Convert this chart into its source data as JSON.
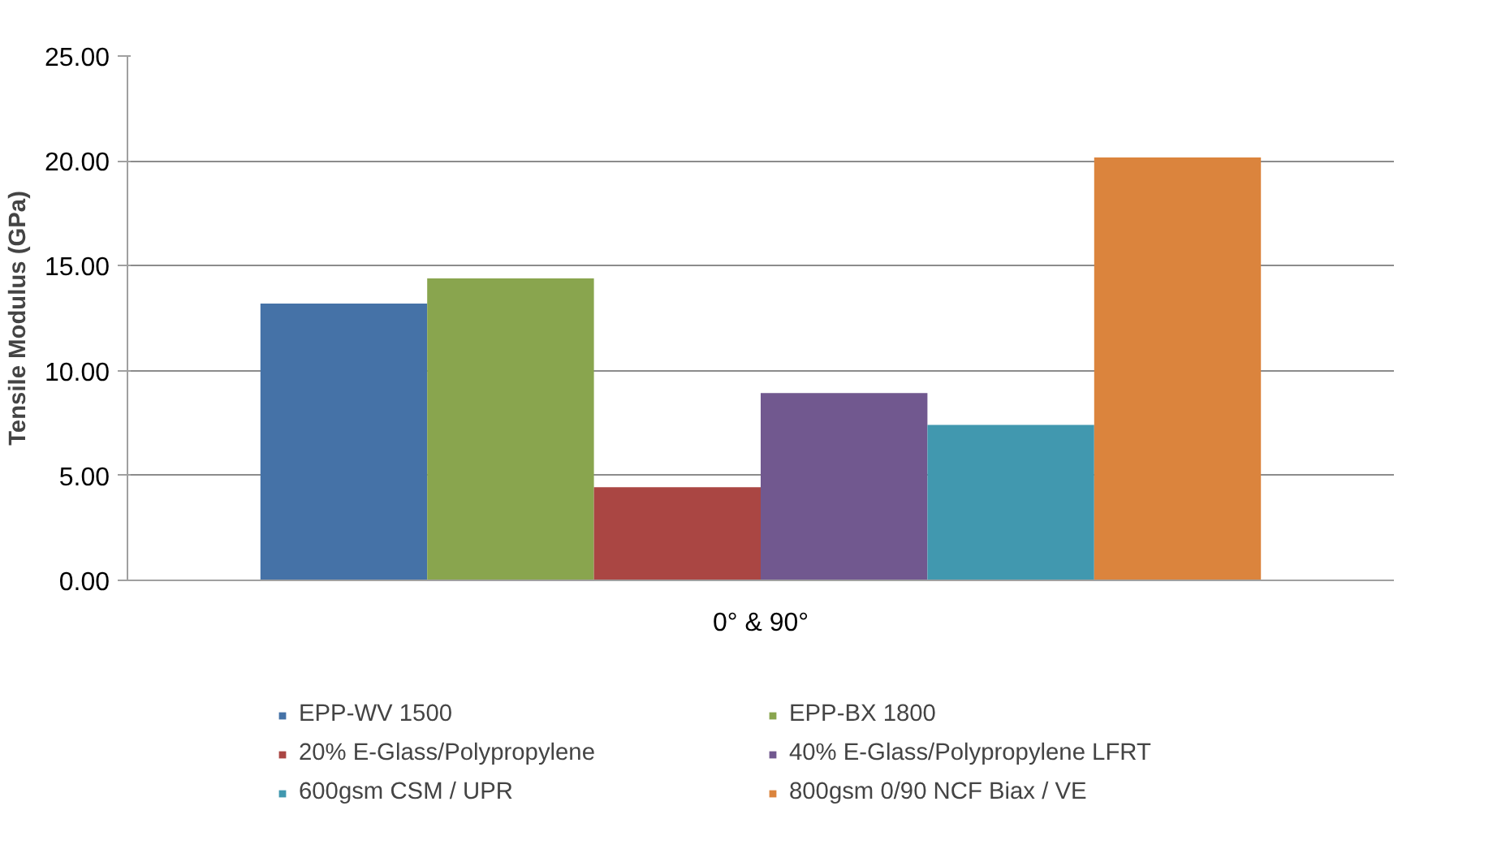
{
  "chart_data": {
    "type": "bar",
    "ylabel": "Tensile Modulus (GPa)",
    "categories": [
      "0° & 90°"
    ],
    "series": [
      {
        "name": "EPP-WV 1500",
        "color": "#4572a7",
        "values": [
          13.2
        ]
      },
      {
        "name": "EPP-BX 1800",
        "color": "#89a54e",
        "values": [
          14.4
        ]
      },
      {
        "name": "20% E-Glass/Polypropylene",
        "color": "#aa4643",
        "values": [
          4.44
        ]
      },
      {
        "name": "40% E-Glass/Polypropylene LFRT",
        "color": "#71588f",
        "values": [
          8.93
        ]
      },
      {
        "name": "600gsm CSM / UPR",
        "color": "#4198af",
        "values": [
          7.41
        ]
      },
      {
        "name": "800gsm 0/90 NCF Biax / VE",
        "color": "#db843d",
        "values": [
          20.16
        ]
      }
    ],
    "ylim": [
      0,
      25
    ],
    "yticks": [
      {
        "value": 0,
        "label": "0.00"
      },
      {
        "value": 5,
        "label": "5.00"
      },
      {
        "value": 10,
        "label": "10.00"
      },
      {
        "value": 15,
        "label": "15.00"
      },
      {
        "value": 20,
        "label": "20.00"
      },
      {
        "value": 25,
        "label": "25.00"
      }
    ],
    "grid": "y",
    "legend": "bottom"
  }
}
